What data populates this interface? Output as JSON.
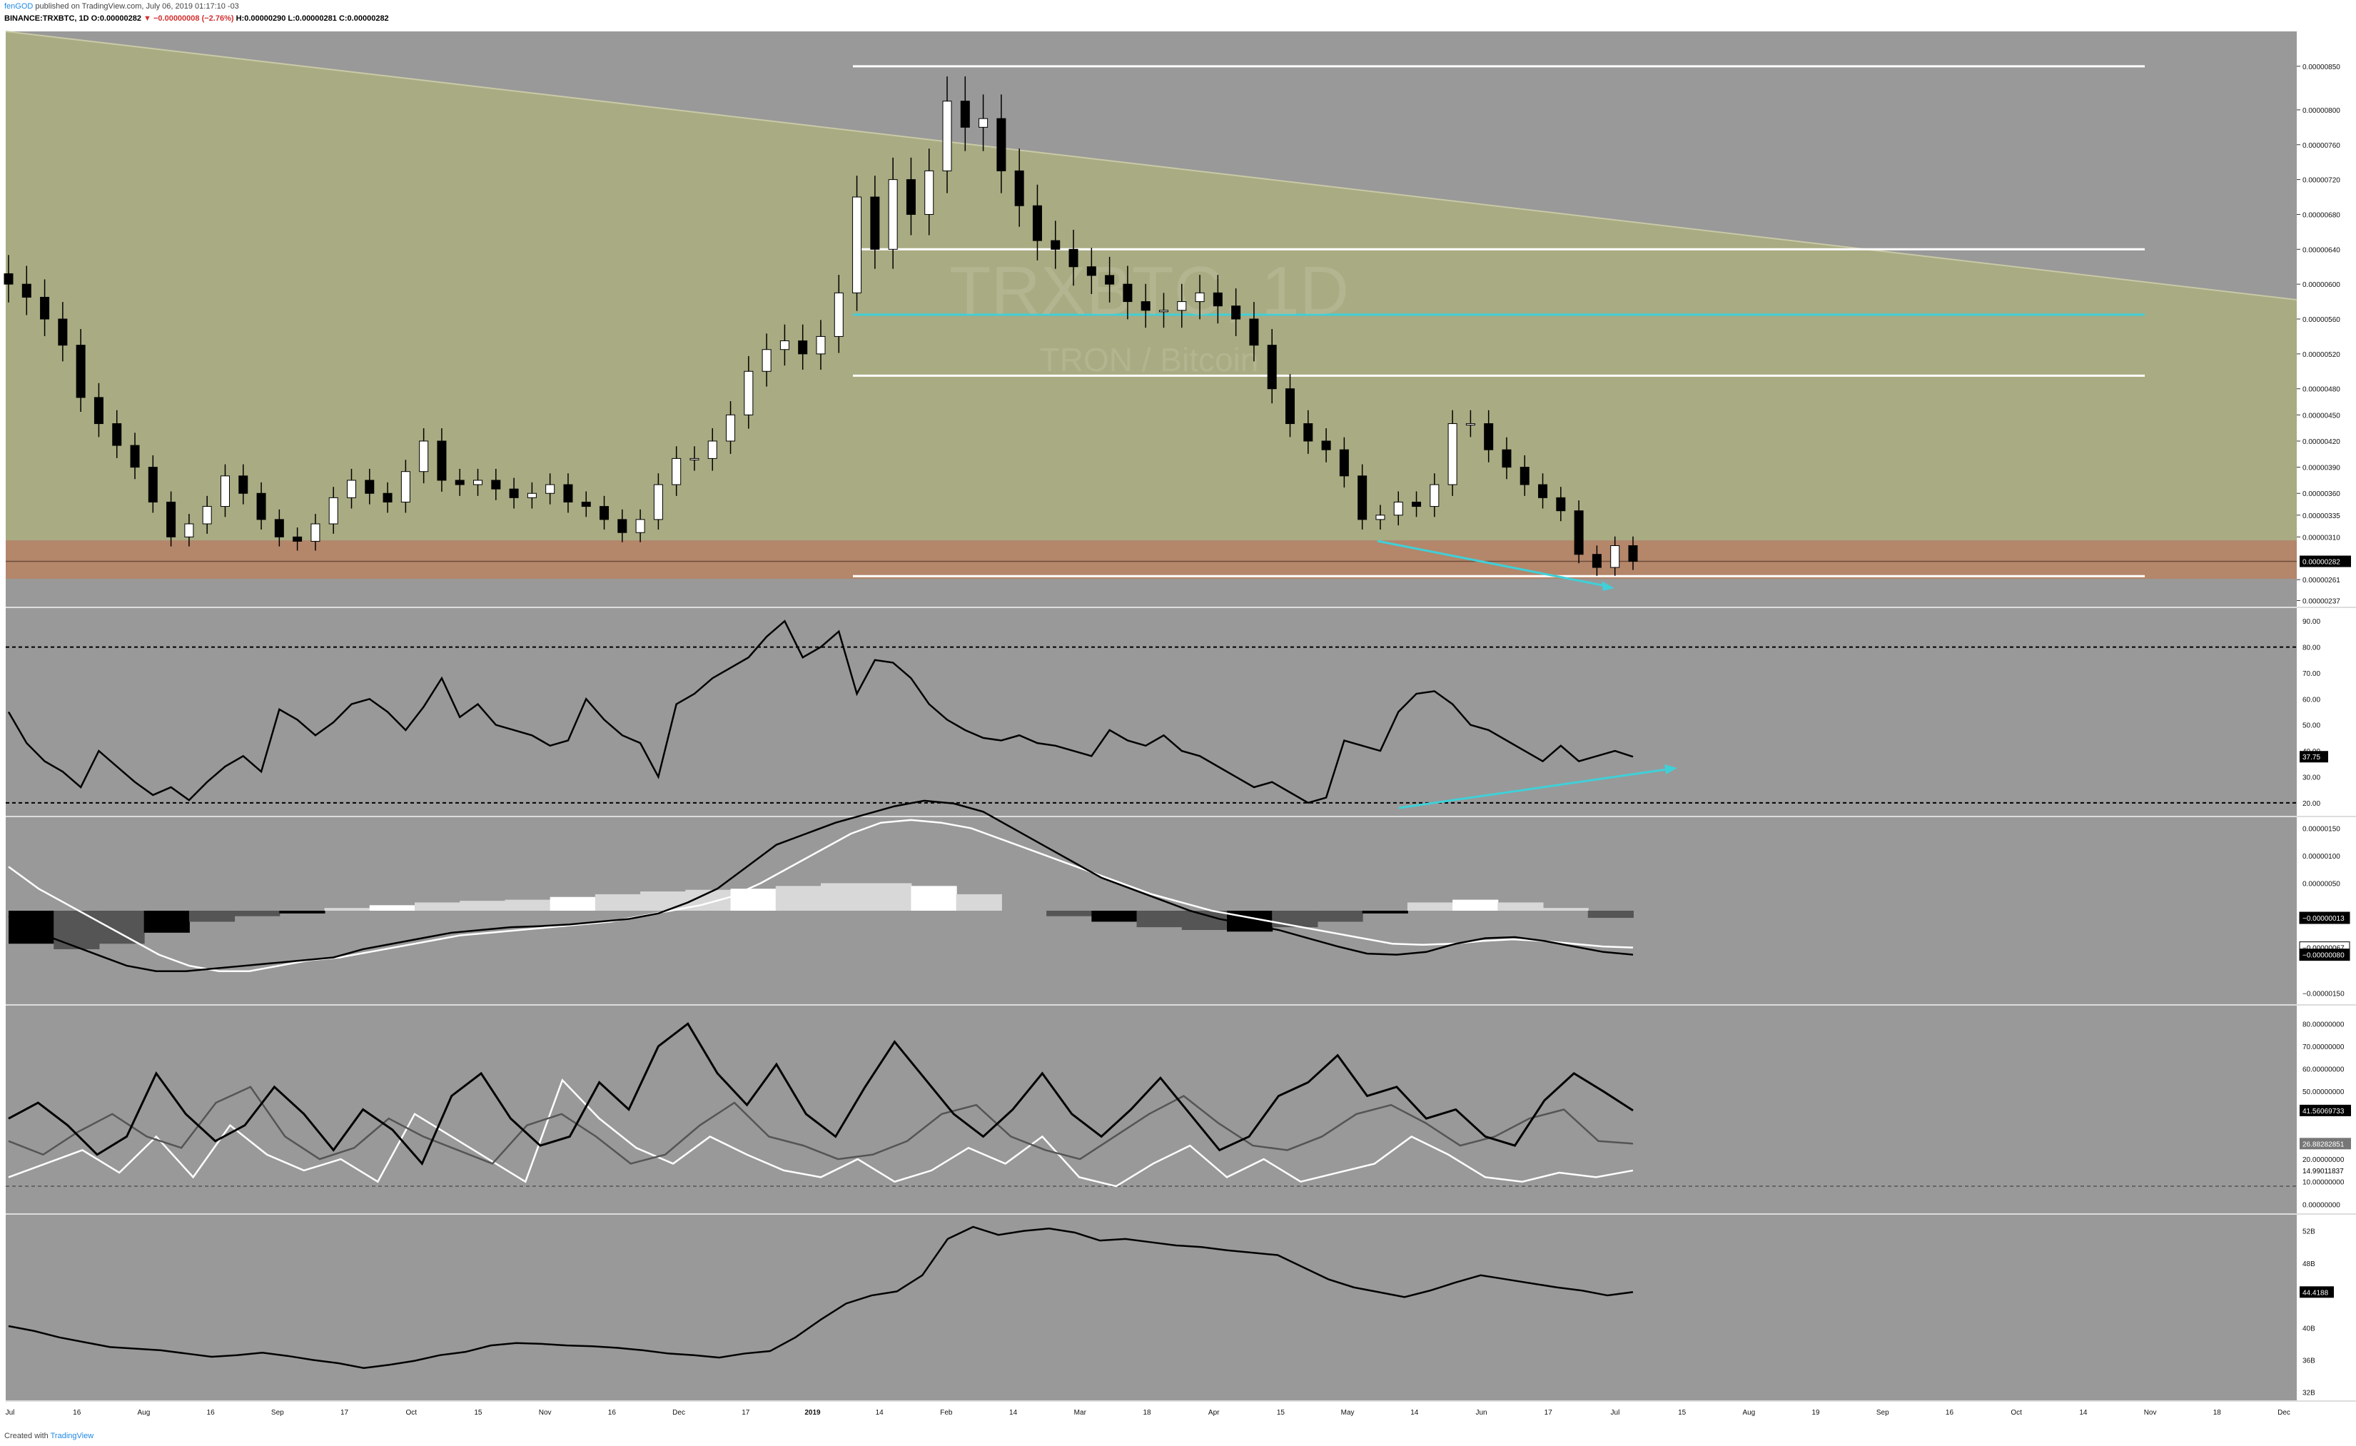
{
  "header": {
    "author": "fenGOD",
    "published": "published on TradingView.com, July 06, 2019 01:17:10 -03",
    "symbol": "BINANCE:TRXBTC, 1D",
    "open": "O:0.00000282",
    "change": "−0.00000008 (−2.76%)",
    "high": "H:0.00000290",
    "low": "L:0.00000281",
    "close": "C:0.00000282"
  },
  "watermark": {
    "symbol": "TRXBTC, 1D",
    "name": "TRON / Bitcoin"
  },
  "footer": {
    "created": "Created with",
    "brand": "TradingView"
  },
  "colors": {
    "bg": "#999999",
    "zone_green": "#a9ab82",
    "zone_orange": "#b4866a",
    "trendline_cyan": "#3fd0d8",
    "level_white": "#ffffff",
    "candle_up": "#ffffff",
    "candle_down": "#000000"
  },
  "chart_data": [
    {
      "type": "candlestick",
      "pane": "price",
      "y_ticks": [
        "0.00000850",
        "0.00000800",
        "0.00000760",
        "0.00000720",
        "0.00000680",
        "0.00000640",
        "0.00000600",
        "0.00000560",
        "0.00000520",
        "0.00000480",
        "0.00000450",
        "0.00000420",
        "0.00000390",
        "0.00000360",
        "0.00000335",
        "0.00000310",
        "0.00000282",
        "0.00000261",
        "0.00000237"
      ],
      "last_value": "0.00000282",
      "horizontal_levels": [
        {
          "price": 8.5e-06,
          "color": "white"
        },
        {
          "price": 6.4e-06,
          "color": "white"
        },
        {
          "price": 5.65e-06,
          "color": "cyan"
        },
        {
          "price": 4.95e-06,
          "color": "white"
        },
        {
          "price": 2.65e-06,
          "color": "white"
        }
      ],
      "zones": [
        {
          "name": "support",
          "from": 2.62e-06,
          "to": 3.06e-06,
          "color": "orange"
        }
      ],
      "close_series": [
        6e-06,
        5.85e-06,
        5.6e-06,
        5.3e-06,
        4.7e-06,
        4.4e-06,
        4.15e-06,
        3.9e-06,
        3.5e-06,
        3.1e-06,
        3.25e-06,
        3.45e-06,
        3.8e-06,
        3.6e-06,
        3.3e-06,
        3.1e-06,
        3.05e-06,
        3.25e-06,
        3.55e-06,
        3.75e-06,
        3.6e-06,
        3.5e-06,
        3.85e-06,
        4.2e-06,
        3.75e-06,
        3.7e-06,
        3.75e-06,
        3.65e-06,
        3.55e-06,
        3.6e-06,
        3.7e-06,
        3.5e-06,
        3.45e-06,
        3.3e-06,
        3.15e-06,
        3.3e-06,
        3.7e-06,
        4e-06,
        4e-06,
        4.2e-06,
        4.5e-06,
        5e-06,
        5.25e-06,
        5.35e-06,
        5.2e-06,
        5.4e-06,
        5.9e-06,
        7e-06,
        6.4e-06,
        7.2e-06,
        6.8e-06,
        7.3e-06,
        8.1e-06,
        7.8e-06,
        7.9e-06,
        7.3e-06,
        6.9e-06,
        6.5e-06,
        6.4e-06,
        6.2e-06,
        6.1e-06,
        6e-06,
        5.8e-06,
        5.7e-06,
        5.7e-06,
        5.8e-06,
        5.9e-06,
        5.75e-06,
        5.6e-06,
        5.3e-06,
        4.8e-06,
        4.4e-06,
        4.2e-06,
        4.1e-06,
        3.8e-06,
        3.3e-06,
        3.35e-06,
        3.5e-06,
        3.45e-06,
        3.7e-06,
        4.4e-06,
        4.4e-06,
        4.1e-06,
        3.9e-06,
        3.7e-06,
        3.55e-06,
        3.4e-06,
        2.9e-06,
        2.75e-06,
        3e-06,
        2.82e-06
      ]
    },
    {
      "type": "line",
      "pane": "oscillator_1",
      "y_ticks": [
        "90.00",
        "80.00",
        "70.00",
        "60.00",
        "50.00",
        "40.00",
        "37.75",
        "30.00",
        "20.00"
      ],
      "last_value": "37.75",
      "levels": [
        80,
        20
      ],
      "values": [
        55,
        43,
        36,
        32,
        26,
        40,
        34,
        28,
        23,
        26,
        21,
        28,
        34,
        38,
        32,
        56,
        52,
        46,
        51,
        58,
        60,
        55,
        48,
        57,
        68,
        53,
        58,
        50,
        48,
        46,
        42,
        44,
        60,
        52,
        46,
        43,
        30,
        58,
        62,
        68,
        72,
        76,
        84,
        90,
        76,
        80,
        86,
        62,
        75,
        74,
        68,
        58,
        52,
        48,
        45,
        44,
        46,
        43,
        42,
        40,
        38,
        48,
        44,
        42,
        46,
        40,
        38,
        34,
        30,
        26,
        28,
        24,
        20,
        22,
        44,
        42,
        40,
        55,
        62,
        63,
        58,
        50,
        48,
        44,
        40,
        36,
        42,
        36,
        38,
        40,
        37.75
      ]
    },
    {
      "type": "line",
      "pane": "oscillator_2",
      "y_ticks": [
        "0.00000150",
        "0.00000100",
        "0.00000050",
        "−0.00000013",
        "−0.00000067",
        "−0.00000080",
        "−0.00000150"
      ],
      "last_values": [
        "−0.00000013",
        "−0.00000067",
        "−0.00000080"
      ],
      "series": [
        {
          "name": "",
          "values": [
            -10,
            -40,
            -60,
            -80,
            -100,
            -110,
            -110,
            -105,
            -100,
            -95,
            -90,
            -85,
            -70,
            -60,
            -50,
            -40,
            -35,
            -30,
            -28,
            -25,
            -20,
            -15,
            -5,
            15,
            40,
            80,
            120,
            140,
            160,
            175,
            190,
            200,
            195,
            180,
            150,
            120,
            90,
            60,
            40,
            20,
            0,
            -15,
            -25,
            -35,
            -50,
            -65,
            -78,
            -80,
            -75,
            -60,
            -50,
            -48,
            -55,
            -65,
            -75,
            -80
          ]
        },
        {
          "name": "",
          "values": [
            80,
            40,
            10,
            -20,
            -50,
            -80,
            -100,
            -110,
            -110,
            -100,
            -90,
            -85,
            -75,
            -65,
            -55,
            -45,
            -40,
            -35,
            -30,
            -25,
            -20,
            -10,
            0,
            10,
            25,
            50,
            80,
            110,
            140,
            160,
            165,
            160,
            150,
            130,
            110,
            90,
            70,
            50,
            30,
            15,
            0,
            -10,
            -20,
            -30,
            -40,
            -50,
            -60,
            -62,
            -60,
            -55,
            -52,
            -55,
            -60,
            -65,
            -67
          ]
        },
        {
          "name": "",
          "values": [
            -60,
            -70,
            -60,
            -40,
            -20,
            -10,
            -5,
            5,
            10,
            15,
            18,
            20,
            25,
            30,
            35,
            38,
            40,
            45,
            50,
            50,
            45,
            30,
            0,
            -10,
            -20,
            -30,
            -35,
            -38,
            -30,
            -20,
            -5,
            15,
            20,
            15,
            5,
            -13
          ]
        }
      ]
    },
    {
      "type": "line",
      "pane": "oscillator_3",
      "y_ticks": [
        "80.00000000",
        "70.00000000",
        "60.00000000",
        "50.00000000",
        "41.56069733",
        "26.88282851",
        "20.00000000",
        "14.99011837",
        "10.00000000",
        "0.00000000"
      ],
      "last_values": [
        "41.56069733",
        "26.88282851",
        "14.99011837"
      ],
      "series": [
        {
          "name": "",
          "values": [
            38,
            45,
            35,
            22,
            30,
            58,
            40,
            28,
            35,
            52,
            40,
            24,
            42,
            33,
            18,
            48,
            58,
            38,
            26,
            30,
            54,
            42,
            70,
            80,
            58,
            44,
            62,
            40,
            30,
            52,
            72,
            56,
            40,
            30,
            42,
            58,
            40,
            30,
            42,
            56,
            40,
            24,
            30,
            48,
            54,
            66,
            48,
            52,
            38,
            42,
            30,
            26,
            46,
            58,
            50,
            41.56
          ]
        },
        {
          "name": "",
          "values": [
            28,
            22,
            32,
            40,
            30,
            25,
            45,
            52,
            30,
            20,
            25,
            38,
            30,
            24,
            18,
            35,
            40,
            30,
            18,
            22,
            35,
            45,
            30,
            26,
            20,
            22,
            28,
            40,
            44,
            30,
            24,
            20,
            30,
            40,
            48,
            36,
            26,
            24,
            30,
            40,
            44,
            36,
            26,
            30,
            38,
            42,
            28,
            26.88
          ]
        },
        {
          "name": "",
          "values": [
            12,
            18,
            24,
            14,
            30,
            12,
            35,
            22,
            15,
            20,
            10,
            40,
            30,
            20,
            10,
            55,
            38,
            25,
            18,
            30,
            22,
            15,
            12,
            20,
            10,
            15,
            25,
            18,
            30,
            12,
            8,
            18,
            26,
            12,
            20,
            10,
            14,
            18,
            30,
            22,
            12,
            10,
            14,
            12,
            14.99
          ]
        }
      ]
    },
    {
      "type": "line",
      "pane": "oscillator_4",
      "y_ticks": [
        "52B",
        "48B",
        "44.4188",
        "40B",
        "36B",
        "32B"
      ],
      "last_value": "44.4188",
      "values": [
        40.2,
        39.6,
        38.8,
        38.2,
        37.6,
        37.4,
        37.2,
        36.8,
        36.4,
        36.6,
        36.9,
        36.5,
        36.0,
        35.6,
        35.0,
        35.4,
        35.9,
        36.6,
        37.0,
        37.8,
        38.1,
        38.0,
        37.8,
        37.7,
        37.5,
        37.2,
        36.8,
        36.6,
        36.3,
        36.8,
        37.1,
        38.8,
        41.0,
        43.0,
        44.0,
        44.5,
        46.5,
        51.0,
        52.5,
        51.5,
        52.0,
        52.3,
        51.8,
        50.8,
        51.0,
        50.6,
        50.2,
        50.0,
        49.6,
        49.3,
        49.0,
        47.5,
        46.0,
        45.0,
        44.4,
        43.8,
        44.6,
        45.6,
        46.5,
        46.0,
        45.5,
        45.0,
        44.6,
        44.0,
        44.4188
      ]
    }
  ],
  "time_axis": {
    "labels": [
      "Jul",
      "16",
      "Aug",
      "16",
      "Sep",
      "17",
      "Oct",
      "15",
      "Nov",
      "16",
      "Dec",
      "17",
      "2019",
      "14",
      "Feb",
      "14",
      "Mar",
      "18",
      "Apr",
      "15",
      "May",
      "14",
      "Jun",
      "17",
      "Jul",
      "15",
      "Aug",
      "19",
      "Sep",
      "16",
      "Oct",
      "14",
      "Nov",
      "18",
      "Dec"
    ]
  }
}
